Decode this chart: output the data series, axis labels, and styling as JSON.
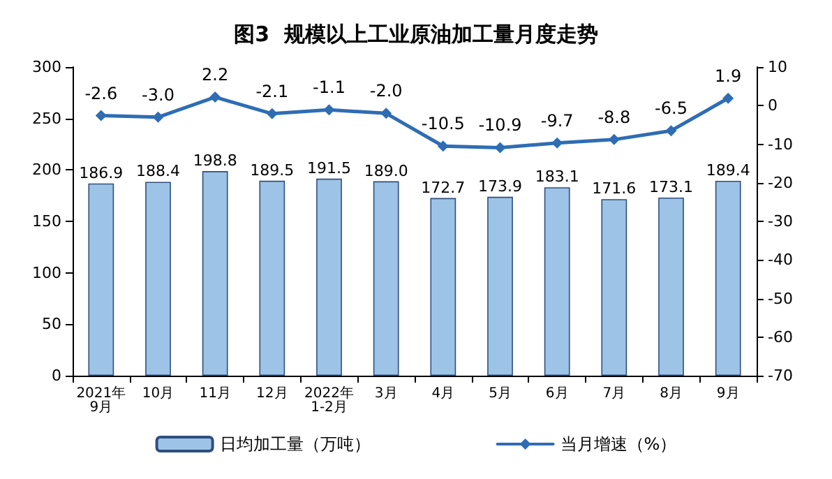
{
  "chart_data": {
    "type": "bar",
    "title": "图3  规模以上工业原油加工量月度走势",
    "categories": [
      "2021年\n9月",
      "10月",
      "11月",
      "12月",
      "2022年\n1-2月",
      "3月",
      "4月",
      "5月",
      "6月",
      "7月",
      "8月",
      "9月"
    ],
    "series": [
      {
        "name": "日均加工量（万吨）",
        "color": "#9dc3e6",
        "values": [
          186.9,
          188.4,
          198.8,
          189.5,
          191.5,
          189.0,
          172.7,
          173.9,
          183.1,
          171.6,
          173.1,
          189.4
        ],
        "value_labels": [
          "186.9",
          "188.4",
          "198.8",
          "189.5",
          "191.5",
          "189.0",
          "172.7",
          "173.9",
          "183.1",
          "171.6",
          "173.1",
          "189.4"
        ]
      },
      {
        "name": "当月增速（%）",
        "type": "line",
        "axis": "y2",
        "color": "#2e6db4",
        "values": [
          -2.6,
          -3.0,
          2.2,
          -2.1,
          -1.1,
          -2.0,
          -10.5,
          -10.9,
          -9.7,
          -8.8,
          -6.5,
          1.9
        ],
        "value_labels": [
          "-2.6",
          "-3.0",
          "2.2",
          "-2.1",
          "-1.1",
          "-2.0",
          "-10.5",
          "-10.9",
          "-9.7",
          "-8.8",
          "-6.5",
          "1.9"
        ]
      }
    ],
    "ylim": [
      0,
      300
    ],
    "yticks": [
      0,
      50,
      100,
      150,
      200,
      250,
      300
    ],
    "y2lim": [
      -70,
      10
    ],
    "y2ticks": [
      -70,
      -60,
      -50,
      -40,
      -30,
      -20,
      -10,
      0,
      10
    ],
    "grid": false,
    "legend": "bottom",
    "marker": "diamond",
    "line_style": "solid"
  }
}
